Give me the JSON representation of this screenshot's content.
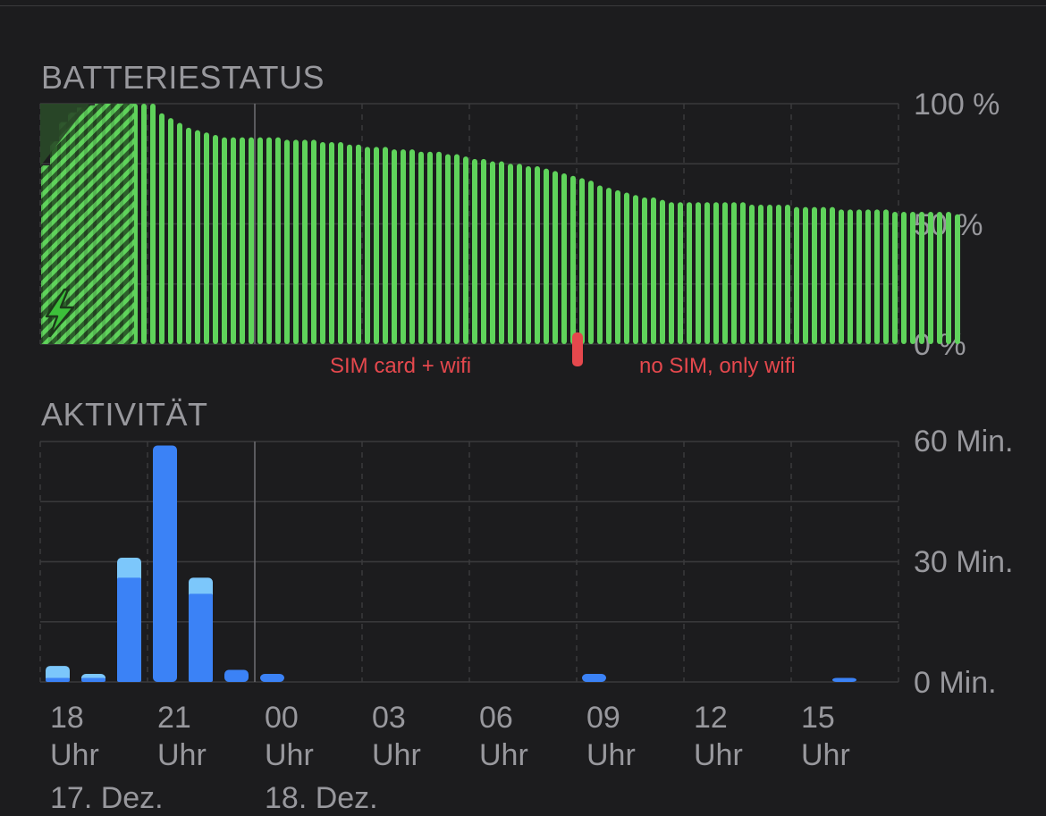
{
  "battery": {
    "title": "BATTERIESTATUS",
    "annotations": [
      "SIM card + wifi",
      "no SIM, only wifi"
    ],
    "colors": {
      "bar": "#5fd35b",
      "charging_overlay": "#2a4a28",
      "marker": "#e5484d"
    }
  },
  "activity": {
    "title": "AKTIVITÄT",
    "colors": {
      "screen_on": "#3b82f6",
      "screen_off": "#7cc7fb"
    }
  },
  "x_axis": {
    "ticks": [
      {
        "hour": "18",
        "unit": "Uhr"
      },
      {
        "hour": "21",
        "unit": "Uhr"
      },
      {
        "hour": "00",
        "unit": "Uhr"
      },
      {
        "hour": "03",
        "unit": "Uhr"
      },
      {
        "hour": "06",
        "unit": "Uhr"
      },
      {
        "hour": "09",
        "unit": "Uhr"
      },
      {
        "hour": "12",
        "unit": "Uhr"
      },
      {
        "hour": "15",
        "unit": "Uhr"
      }
    ],
    "dates": [
      "17. Dez.",
      "18. Dez."
    ]
  },
  "chart_data": [
    {
      "type": "bar",
      "title": "BATTERIESTATUS",
      "y_ticks": [
        "100 %",
        "50 %",
        "0 %"
      ],
      "ylim": [
        0,
        100
      ],
      "x_ticks": [
        "18 Uhr",
        "21 Uhr",
        "00 Uhr",
        "03 Uhr",
        "06 Uhr",
        "09 Uhr",
        "12 Uhr",
        "15 Uhr"
      ],
      "grid": true,
      "charging_period": [
        "17. Dez. 17:00",
        "17. Dez. 19:45"
      ],
      "network_change_marker": "18. Dez. 08:00",
      "values": [
        74,
        84,
        92,
        96,
        98,
        99,
        100,
        100,
        100,
        100,
        100,
        100,
        100,
        96,
        94,
        92,
        90,
        89,
        88,
        87,
        86,
        86,
        86,
        86,
        86,
        86,
        86,
        85,
        85,
        85,
        85,
        84,
        84,
        84,
        83,
        83,
        82,
        82,
        82,
        81,
        81,
        81,
        80,
        80,
        80,
        79,
        79,
        78,
        77,
        77,
        76,
        76,
        75,
        75,
        74,
        74,
        73,
        72,
        71,
        70,
        69,
        68,
        66,
        65,
        64,
        63,
        62,
        61,
        61,
        60,
        59,
        59,
        59,
        59,
        59,
        59,
        59,
        59,
        59,
        58,
        58,
        58,
        58,
        58,
        57,
        57,
        57,
        57,
        57,
        56,
        56,
        56,
        56,
        56,
        56,
        55,
        55,
        55,
        55,
        55,
        55,
        55,
        54
      ]
    },
    {
      "type": "bar",
      "title": "AKTIVITÄT",
      "y_ticks": [
        "60 Min.",
        "30 Min.",
        "0 Min."
      ],
      "ylim": [
        0,
        60
      ],
      "categories": [
        "17:00",
        "18:00",
        "19:00",
        "20:00",
        "21:00",
        "22:00",
        "23:00",
        "00:00",
        "01:00",
        "02:00",
        "03:00",
        "04:00",
        "05:00",
        "06:00",
        "07:00",
        "08:00",
        "09:00",
        "10:00",
        "11:00",
        "12:00",
        "13:00",
        "14:00",
        "15:00",
        "16:00"
      ],
      "series": [
        {
          "values": [
            1,
            1,
            26,
            59,
            22,
            3,
            2,
            0,
            0,
            0,
            0,
            0,
            0,
            0,
            0,
            2,
            0,
            0,
            0,
            0,
            0,
            0,
            1,
            0
          ]
        },
        {
          "values": [
            3,
            1,
            5,
            0,
            4,
            0,
            0,
            0,
            0,
            0,
            0,
            0,
            0,
            0,
            0,
            0,
            0,
            0,
            0,
            0,
            0,
            0,
            0,
            0
          ]
        }
      ]
    }
  ]
}
